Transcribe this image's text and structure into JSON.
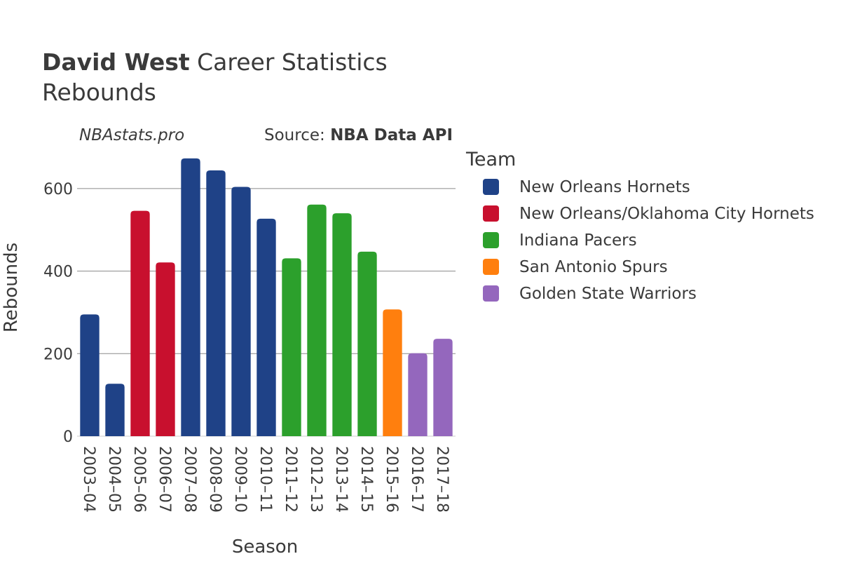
{
  "title": {
    "bold": "David West",
    "rest": " Career Statistics",
    "subtitle": "Rebounds"
  },
  "credit": {
    "site": "NBAstats.pro",
    "source_prefix": "Source: ",
    "source_name": "NBA Data API"
  },
  "legend": {
    "title": "Team",
    "items": [
      {
        "label": "New Orleans Hornets",
        "color": "#1f4287"
      },
      {
        "label": "New Orleans/Oklahoma City Hornets",
        "color": "#c8102e"
      },
      {
        "label": "Indiana Pacers",
        "color": "#2ca02c"
      },
      {
        "label": "San Antonio Spurs",
        "color": "#ff7f0e"
      },
      {
        "label": "Golden State Warriors",
        "color": "#9467bd"
      }
    ]
  },
  "chart_data": {
    "type": "bar",
    "title": "David West Career Statistics Rebounds",
    "xlabel": "Season",
    "ylabel": "Rebounds",
    "ylim": [
      0,
      700
    ],
    "yticks": [
      0,
      200,
      400,
      600
    ],
    "grid": true,
    "legend_position": "right",
    "categories": [
      "2003–04",
      "2004–05",
      "2005–06",
      "2006–07",
      "2007–08",
      "2008–09",
      "2009–10",
      "2010–11",
      "2011–12",
      "2012–13",
      "2013–14",
      "2014–15",
      "2015–16",
      "2016–17",
      "2017–18"
    ],
    "values": [
      295,
      127,
      546,
      421,
      673,
      644,
      604,
      527,
      431,
      561,
      540,
      447,
      307,
      201,
      236
    ],
    "teams": [
      "New Orleans Hornets",
      "New Orleans Hornets",
      "New Orleans/Oklahoma City Hornets",
      "New Orleans/Oklahoma City Hornets",
      "New Orleans Hornets",
      "New Orleans Hornets",
      "New Orleans Hornets",
      "New Orleans Hornets",
      "Indiana Pacers",
      "Indiana Pacers",
      "Indiana Pacers",
      "Indiana Pacers",
      "San Antonio Spurs",
      "Golden State Warriors",
      "Golden State Warriors"
    ]
  }
}
